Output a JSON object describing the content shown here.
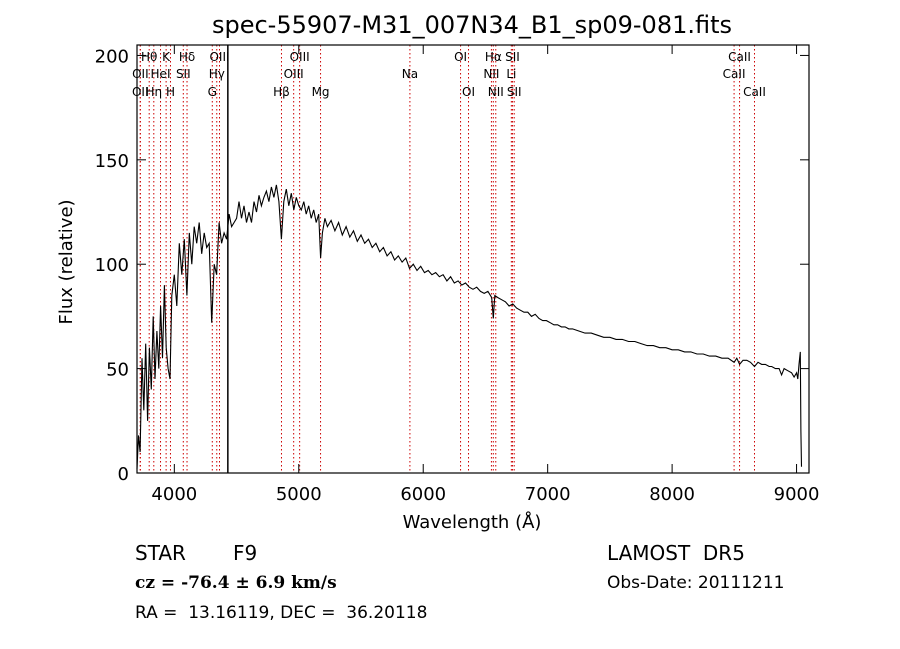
{
  "chart_data": {
    "type": "line",
    "title": "spec-55907-M31_007N34_B1_sp09-081.fits",
    "xlabel": "Wavelength (Å)",
    "ylabel": "Flux (relative)",
    "xlim": [
      3700,
      9100
    ],
    "ylim": [
      0,
      205
    ],
    "xticks": [
      4000,
      5000,
      6000,
      7000,
      8000,
      9000
    ],
    "yticks": [
      0,
      50,
      100,
      150,
      200
    ],
    "grid": false,
    "series": [
      {
        "values": [
          [
            3700,
            2
          ],
          [
            3712,
            18
          ],
          [
            3725,
            10
          ],
          [
            3740,
            55
          ],
          [
            3755,
            30
          ],
          [
            3770,
            62
          ],
          [
            3785,
            25
          ],
          [
            3800,
            60
          ],
          [
            3815,
            40
          ],
          [
            3830,
            75
          ],
          [
            3845,
            45
          ],
          [
            3860,
            68
          ],
          [
            3875,
            50
          ],
          [
            3890,
            80
          ],
          [
            3905,
            55
          ],
          [
            3920,
            90
          ],
          [
            3935,
            60
          ],
          [
            3950,
            50
          ],
          [
            3965,
            45
          ],
          [
            3980,
            85
          ],
          [
            4000,
            95
          ],
          [
            4020,
            80
          ],
          [
            4040,
            110
          ],
          [
            4060,
            95
          ],
          [
            4080,
            112
          ],
          [
            4101,
            85
          ],
          [
            4120,
            115
          ],
          [
            4140,
            100
          ],
          [
            4160,
            118
          ],
          [
            4180,
            110
          ],
          [
            4200,
            120
          ],
          [
            4220,
            105
          ],
          [
            4240,
            115
          ],
          [
            4260,
            108
          ],
          [
            4280,
            110
          ],
          [
            4300,
            72
          ],
          [
            4320,
            100
          ],
          [
            4340,
            95
          ],
          [
            4360,
            120
          ],
          [
            4380,
            110
          ],
          [
            4400,
            115
          ],
          [
            4420,
            112
          ],
          [
            4440,
            124
          ],
          [
            4460,
            118
          ],
          [
            4480,
            120
          ],
          [
            4500,
            122
          ],
          [
            4520,
            130
          ],
          [
            4540,
            122
          ],
          [
            4560,
            128
          ],
          [
            4580,
            120
          ],
          [
            4600,
            125
          ],
          [
            4620,
            120
          ],
          [
            4640,
            130
          ],
          [
            4660,
            125
          ],
          [
            4680,
            133
          ],
          [
            4700,
            128
          ],
          [
            4720,
            132
          ],
          [
            4740,
            135
          ],
          [
            4760,
            130
          ],
          [
            4780,
            137
          ],
          [
            4800,
            132
          ],
          [
            4820,
            138
          ],
          [
            4840,
            130
          ],
          [
            4860,
            112
          ],
          [
            4880,
            130
          ],
          [
            4900,
            136
          ],
          [
            4920,
            128
          ],
          [
            4940,
            134
          ],
          [
            4960,
            126
          ],
          [
            4980,
            132
          ],
          [
            5000,
            128
          ],
          [
            5020,
            126
          ],
          [
            5040,
            130
          ],
          [
            5060,
            124
          ],
          [
            5080,
            128
          ],
          [
            5100,
            122
          ],
          [
            5120,
            126
          ],
          [
            5140,
            120
          ],
          [
            5160,
            124
          ],
          [
            5175,
            103
          ],
          [
            5190,
            115
          ],
          [
            5210,
            122
          ],
          [
            5230,
            118
          ],
          [
            5260,
            121
          ],
          [
            5290,
            116
          ],
          [
            5320,
            120
          ],
          [
            5350,
            114
          ],
          [
            5380,
            118
          ],
          [
            5410,
            113
          ],
          [
            5440,
            116
          ],
          [
            5470,
            111
          ],
          [
            5500,
            114
          ],
          [
            5530,
            110
          ],
          [
            5560,
            112
          ],
          [
            5590,
            108
          ],
          [
            5620,
            110
          ],
          [
            5650,
            106
          ],
          [
            5680,
            108
          ],
          [
            5710,
            104
          ],
          [
            5740,
            106
          ],
          [
            5770,
            102
          ],
          [
            5800,
            104
          ],
          [
            5830,
            101
          ],
          [
            5860,
            103
          ],
          [
            5890,
            98
          ],
          [
            5920,
            100
          ],
          [
            5950,
            97
          ],
          [
            5980,
            99
          ],
          [
            6010,
            96
          ],
          [
            6040,
            97
          ],
          [
            6070,
            95
          ],
          [
            6100,
            96
          ],
          [
            6130,
            94
          ],
          [
            6160,
            95
          ],
          [
            6190,
            92
          ],
          [
            6220,
            94
          ],
          [
            6250,
            91
          ],
          [
            6280,
            92
          ],
          [
            6310,
            90
          ],
          [
            6340,
            91
          ],
          [
            6370,
            89
          ],
          [
            6400,
            88
          ],
          [
            6430,
            89
          ],
          [
            6460,
            87
          ],
          [
            6490,
            86
          ],
          [
            6520,
            87
          ],
          [
            6550,
            84
          ],
          [
            6563,
            74
          ],
          [
            6575,
            85
          ],
          [
            6600,
            84
          ],
          [
            6630,
            83
          ],
          [
            6660,
            82
          ],
          [
            6690,
            80
          ],
          [
            6720,
            81
          ],
          [
            6750,
            79
          ],
          [
            6780,
            78
          ],
          [
            6810,
            77
          ],
          [
            6840,
            77
          ],
          [
            6870,
            75
          ],
          [
            6900,
            76
          ],
          [
            6930,
            74
          ],
          [
            6960,
            73
          ],
          [
            6990,
            73
          ],
          [
            7020,
            72
          ],
          [
            7050,
            71
          ],
          [
            7080,
            71
          ],
          [
            7110,
            70
          ],
          [
            7140,
            70
          ],
          [
            7170,
            69
          ],
          [
            7200,
            69
          ],
          [
            7250,
            68
          ],
          [
            7300,
            67
          ],
          [
            7350,
            67
          ],
          [
            7400,
            66
          ],
          [
            7450,
            65
          ],
          [
            7500,
            65
          ],
          [
            7550,
            64
          ],
          [
            7600,
            64
          ],
          [
            7650,
            63
          ],
          [
            7700,
            63
          ],
          [
            7750,
            62
          ],
          [
            7800,
            61
          ],
          [
            7850,
            61
          ],
          [
            7900,
            60
          ],
          [
            7950,
            60
          ],
          [
            8000,
            59
          ],
          [
            8050,
            59
          ],
          [
            8100,
            58
          ],
          [
            8150,
            58
          ],
          [
            8200,
            57
          ],
          [
            8250,
            57
          ],
          [
            8300,
            56
          ],
          [
            8350,
            56
          ],
          [
            8400,
            55
          ],
          [
            8450,
            55
          ],
          [
            8498,
            53
          ],
          [
            8520,
            55
          ],
          [
            8542,
            52
          ],
          [
            8570,
            54
          ],
          [
            8600,
            54
          ],
          [
            8630,
            53
          ],
          [
            8662,
            51
          ],
          [
            8690,
            53
          ],
          [
            8720,
            52
          ],
          [
            8750,
            52
          ],
          [
            8780,
            51
          ],
          [
            8800,
            51
          ],
          [
            8830,
            50
          ],
          [
            8860,
            50
          ],
          [
            8880,
            47
          ],
          [
            8900,
            50
          ],
          [
            8930,
            49
          ],
          [
            8960,
            48
          ],
          [
            8980,
            46
          ],
          [
            9000,
            48
          ],
          [
            9010,
            45
          ],
          [
            9020,
            52
          ],
          [
            9030,
            58
          ],
          [
            9035,
            20
          ],
          [
            9040,
            3
          ]
        ]
      }
    ],
    "spectral_lines": [
      {
        "label": "Hθ",
        "x": 3798,
        "row": 1
      },
      {
        "label": "K",
        "x": 3934,
        "row": 1
      },
      {
        "label": "Hδ",
        "x": 4102,
        "row": 1
      },
      {
        "label": "OIII",
        "x": 4363,
        "row": 1
      },
      {
        "label": "OIII",
        "x": 5007,
        "row": 1
      },
      {
        "label": "OI",
        "x": 6300,
        "row": 1
      },
      {
        "label": "Hα",
        "x": 6563,
        "row": 1
      },
      {
        "label": "SII",
        "x": 6717,
        "row": 1
      },
      {
        "label": "CaII",
        "x": 8542,
        "row": 1
      },
      {
        "label": "OII",
        "x": 3727,
        "row": 2
      },
      {
        "label": "HeI",
        "x": 3889,
        "row": 2
      },
      {
        "label": "SII",
        "x": 4072,
        "row": 2
      },
      {
        "label": "Hγ",
        "x": 4341,
        "row": 2
      },
      {
        "label": "OIII",
        "x": 4959,
        "row": 2
      },
      {
        "label": "NII",
        "x": 6548,
        "row": 2
      },
      {
        "label": "Li",
        "x": 6708,
        "row": 2
      },
      {
        "label": "CaII",
        "x": 8498,
        "row": 2
      },
      {
        "label": "OII",
        "x": 3726,
        "row": 3
      },
      {
        "label": "Hη",
        "x": 3835,
        "row": 3
      },
      {
        "label": "H",
        "x": 3969,
        "row": 3
      },
      {
        "label": "G",
        "x": 4305,
        "row": 3
      },
      {
        "label": "Hβ",
        "x": 4861,
        "row": 3
      },
      {
        "label": "Mg",
        "x": 5175,
        "row": 3
      },
      {
        "label": "Na",
        "x": 5893,
        "row": 2
      },
      {
        "label": "OI",
        "x": 6364,
        "row": 3
      },
      {
        "label": "NII",
        "x": 6583,
        "row": 3
      },
      {
        "label": "SII",
        "x": 6731,
        "row": 3
      },
      {
        "label": "CaII",
        "x": 8662,
        "row": 3
      }
    ],
    "spectral_line_color": "#cc0000",
    "marker_line": {
      "x": 4430,
      "color": "#000000"
    }
  },
  "info": {
    "object_class": "STAR",
    "subclass": "F9",
    "survey": "LAMOST  DR5",
    "cz_label": "cz = -76.4 ± 6.9 km/s",
    "obs_date": "Obs-Date: 20111211",
    "coords": "RA =  13.16119, DEC =  36.20118"
  }
}
